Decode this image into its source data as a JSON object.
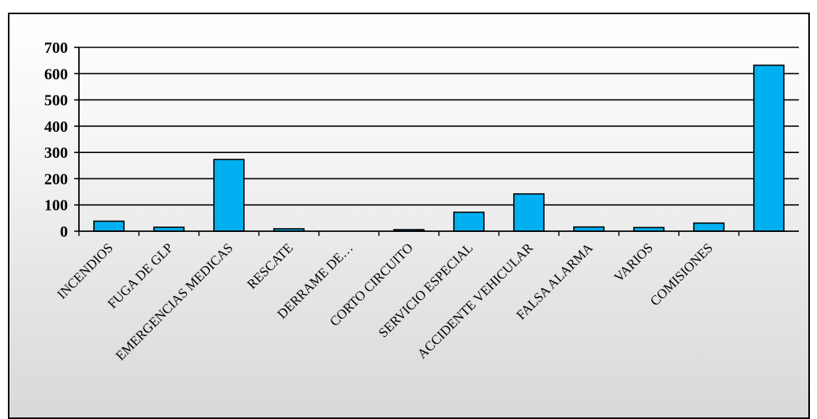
{
  "chart_data": {
    "type": "bar",
    "categories": [
      "INCENDIOS",
      "FUGA DE GLP",
      "EMERGENCIAS MEDICAS",
      "RESCATE",
      "DERRAME DE…",
      "CORTO CIRCUITO",
      "SERVICIO ESPECIAL",
      "ACCIDENTE VEHICULAR",
      "FALSA ALARMA",
      "VARIOS",
      "COMISIONES",
      ""
    ],
    "values": [
      38,
      15,
      273,
      9,
      0,
      6,
      72,
      142,
      16,
      14,
      31,
      632
    ],
    "yticks": [
      "0",
      "100",
      "200",
      "300",
      "400",
      "500",
      "600",
      "700"
    ],
    "ylim": [
      0,
      700
    ],
    "grid": true,
    "bar_color": "#00b0f0",
    "title": "",
    "xlabel": "",
    "ylabel": ""
  }
}
